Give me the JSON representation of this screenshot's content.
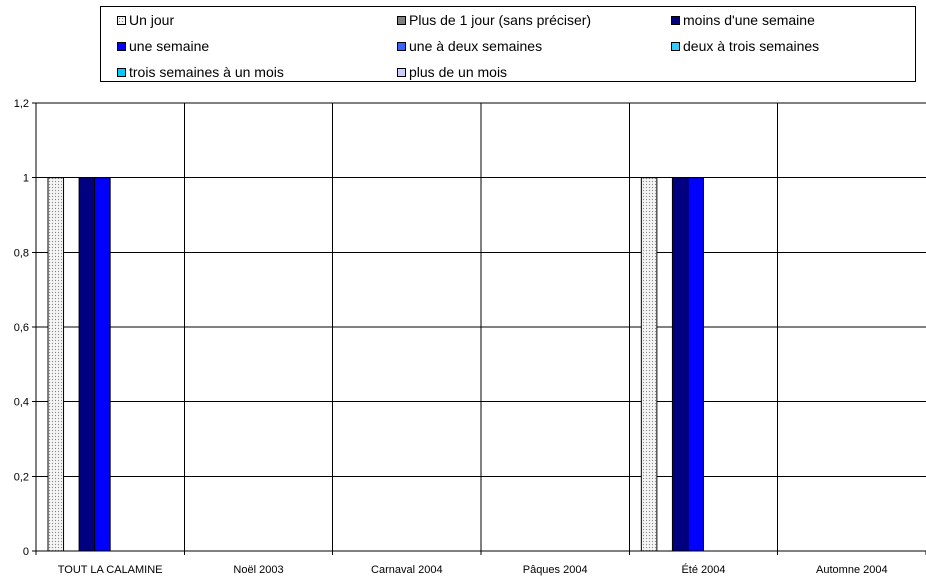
{
  "chart_data": {
    "type": "bar",
    "categories": [
      "TOUT LA CALAMINE",
      "Noël 2003",
      "Carnaval 2004",
      "Pâques 2004",
      "Été 2004",
      "Automne 2004"
    ],
    "ylim": [
      0,
      1.2
    ],
    "yticks": [
      "0",
      "0,2",
      "0,4",
      "0,6",
      "0,8",
      "1",
      "1,2"
    ],
    "grid": true,
    "legend_position": "top",
    "series": [
      {
        "name": "Un jour",
        "color": "#f0f0f0",
        "pattern": "dotted",
        "values": [
          1,
          0,
          0,
          0,
          1,
          0
        ]
      },
      {
        "name": "Plus de 1 jour (sans préciser)",
        "color": "#808080",
        "values": [
          0,
          0,
          0,
          0,
          0,
          0
        ]
      },
      {
        "name": "moins d'une semaine",
        "color": "#000080",
        "values": [
          1,
          0,
          0,
          0,
          1,
          0
        ]
      },
      {
        "name": "une semaine",
        "color": "#0000ff",
        "values": [
          1,
          0,
          0,
          0,
          1,
          0
        ]
      },
      {
        "name": "une à deux semaines",
        "color": "#3366ff",
        "values": [
          0,
          0,
          0,
          0,
          0,
          0
        ]
      },
      {
        "name": "deux à trois semaines",
        "color": "#33ccff",
        "values": [
          0,
          0,
          0,
          0,
          0,
          0
        ]
      },
      {
        "name": "trois semaines à un mois",
        "color": "#00ccff",
        "values": [
          0,
          0,
          0,
          0,
          0,
          0
        ]
      },
      {
        "name": "plus de un mois",
        "color": "#ccccff",
        "values": [
          0,
          0,
          0,
          0,
          0,
          0
        ]
      }
    ]
  }
}
